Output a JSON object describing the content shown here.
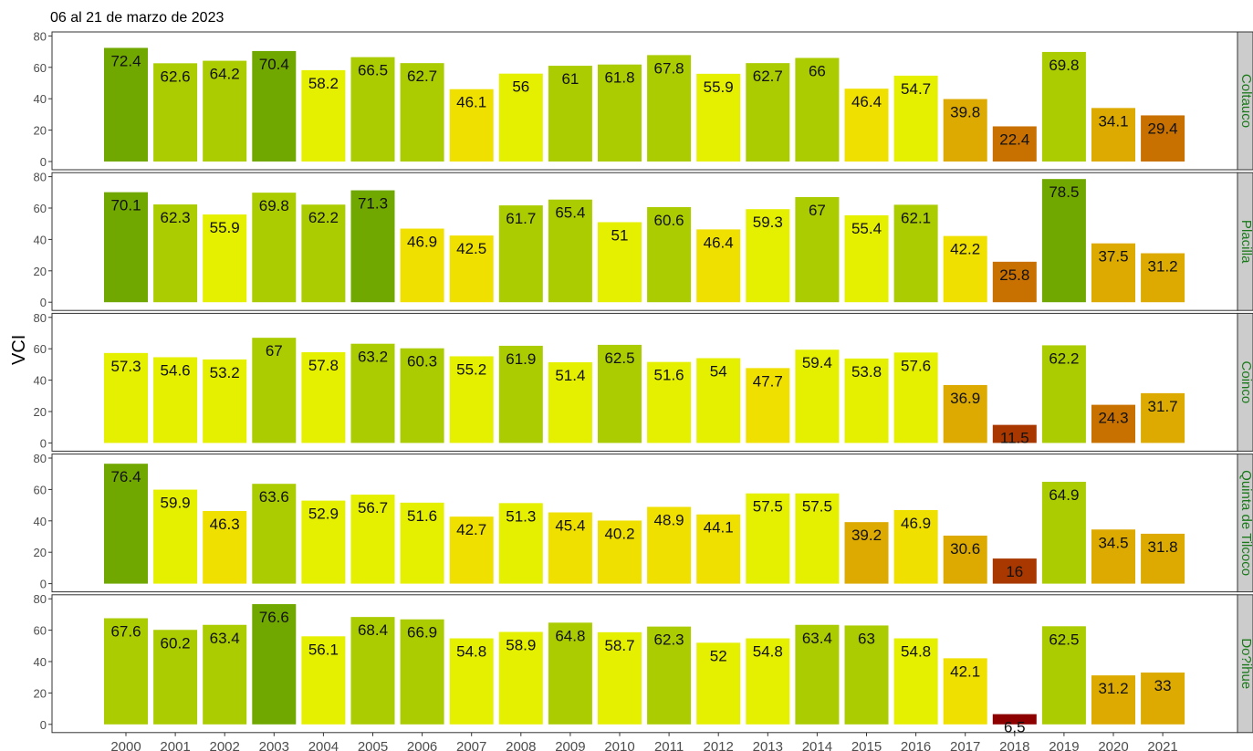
{
  "chart_data": {
    "type": "bar",
    "subtitle": "06 al 21 de marzo de 2023",
    "ylabel": "VCI",
    "xlabel": "",
    "ylim": [
      0,
      80
    ],
    "yticks": [
      0,
      20,
      40,
      60,
      80
    ],
    "grid": false,
    "categories": [
      "2000",
      "2001",
      "2002",
      "2003",
      "2004",
      "2005",
      "2006",
      "2007",
      "2008",
      "2009",
      "2010",
      "2011",
      "2012",
      "2013",
      "2014",
      "2015",
      "2016",
      "2017",
      "2018",
      "2019",
      "2020",
      "2021"
    ],
    "panels": [
      {
        "name": "Coltauco",
        "values": [
          72.4,
          62.6,
          64.2,
          70.4,
          58.2,
          66.5,
          62.7,
          46.1,
          56,
          61,
          61.8,
          67.8,
          55.9,
          62.7,
          66,
          46.4,
          54.7,
          39.8,
          22.4,
          69.8,
          34.1,
          29.4
        ],
        "labels": [
          "72.4",
          "62.6",
          "64.2",
          "70.4",
          "58.2",
          "66.5",
          "62.7",
          "46.1",
          "56",
          "61",
          "61.8",
          "67.8",
          "55.9",
          "62.7",
          "66",
          "46.4",
          "54.7",
          "39.8",
          "22.4",
          "69.8",
          "34.1",
          "29.4"
        ]
      },
      {
        "name": "Placilla",
        "values": [
          70.1,
          62.3,
          55.9,
          69.8,
          62.2,
          71.3,
          46.9,
          42.5,
          61.7,
          65.4,
          51,
          60.6,
          46.4,
          59.3,
          67,
          55.4,
          62.1,
          42.2,
          25.8,
          78.5,
          37.5,
          31.2
        ],
        "labels": [
          "70.1",
          "62.3",
          "55.9",
          "69.8",
          "62.2",
          "71.3",
          "46.9",
          "42.5",
          "61.7",
          "65.4",
          "51",
          "60.6",
          "46.4",
          "59.3",
          "67",
          "55.4",
          "62.1",
          "42.2",
          "25.8",
          "78.5",
          "37.5",
          "31.2"
        ]
      },
      {
        "name": "Coinco",
        "values": [
          57.3,
          54.6,
          53.2,
          67,
          57.8,
          63.2,
          60.3,
          55.2,
          61.9,
          51.4,
          62.5,
          51.6,
          54,
          47.7,
          59.4,
          53.8,
          57.6,
          36.9,
          11.5,
          62.2,
          24.3,
          31.7
        ],
        "labels": [
          "57.3",
          "54.6",
          "53.2",
          "67",
          "57.8",
          "63.2",
          "60.3",
          "55.2",
          "61.9",
          "51.4",
          "62.5",
          "51.6",
          "54",
          "47.7",
          "59.4",
          "53.8",
          "57.6",
          "36.9",
          "11.5",
          "62.2",
          "24.3",
          "31.7"
        ]
      },
      {
        "name": "Quinta de Tilcoco",
        "values": [
          76.4,
          59.9,
          46.3,
          63.6,
          52.9,
          56.7,
          51.6,
          42.7,
          51.3,
          45.4,
          40.2,
          48.9,
          44.1,
          57.5,
          57.5,
          39.2,
          46.9,
          30.6,
          16,
          64.9,
          34.5,
          31.8
        ],
        "labels": [
          "76.4",
          "59.9",
          "46.3",
          "63.6",
          "52.9",
          "56.7",
          "51.6",
          "42.7",
          "51.3",
          "45.4",
          "40.2",
          "48.9",
          "44.1",
          "57.5",
          "57.5",
          "39.2",
          "46.9",
          "30.6",
          "16",
          "64.9",
          "34.5",
          "31.8"
        ]
      },
      {
        "name": "Do?ihue",
        "values": [
          67.6,
          60.2,
          63.4,
          76.6,
          56.1,
          68.4,
          66.9,
          54.8,
          58.9,
          64.8,
          58.7,
          62.3,
          52,
          54.8,
          63.4,
          63,
          54.8,
          42.1,
          6.5,
          62.5,
          31.2,
          33
        ],
        "labels": [
          "67.6",
          "60.2",
          "63.4",
          "76.6",
          "56.1",
          "68.4",
          "66.9",
          "54.8",
          "58.9",
          "64.8",
          "58.7",
          "62.3",
          "52",
          "54.8",
          "63.4",
          "63",
          "54.8",
          "42.1",
          "6.5",
          "62.5",
          "31.2",
          "33"
        ]
      }
    ],
    "color_scale": [
      {
        "min": 70,
        "color": "#70a800"
      },
      {
        "min": 60,
        "color": "#aacc00"
      },
      {
        "min": 50,
        "color": "#e5ef00"
      },
      {
        "min": 40,
        "color": "#f0e000"
      },
      {
        "min": 30,
        "color": "#dcaa00"
      },
      {
        "min": 20,
        "color": "#c87000"
      },
      {
        "min": 10,
        "color": "#a83800"
      },
      {
        "min": 0,
        "color": "#8c0000"
      }
    ],
    "strip_color": "#cccccc",
    "strip_text_color": "#1a7a1a"
  }
}
